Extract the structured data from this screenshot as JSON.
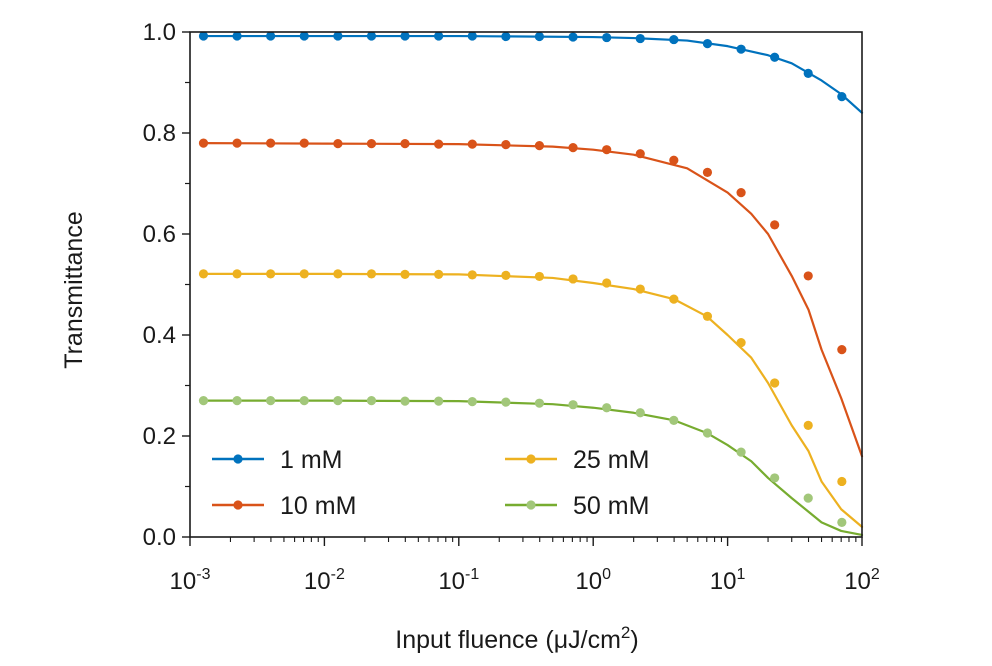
{
  "chart_data": {
    "type": "line",
    "xscale": "log",
    "xlabel": "Input fluence (μJ/cm",
    "xlabel_sup": "2",
    "xlabel_close": ")",
    "ylabel": "Transmittance",
    "xlim": [
      0.001,
      100
    ],
    "ylim": [
      0.0,
      1.0
    ],
    "yticks": [
      {
        "value": 0.0,
        "label": "0.0"
      },
      {
        "value": 0.2,
        "label": "0.2"
      },
      {
        "value": 0.4,
        "label": "0.4"
      },
      {
        "value": 0.6,
        "label": "0.6"
      },
      {
        "value": 0.8,
        "label": "0.8"
      },
      {
        "value": 1.0,
        "label": "1.0"
      }
    ],
    "xticks": [
      {
        "value": 0.001,
        "base": "10",
        "exp": "-3"
      },
      {
        "value": 0.01,
        "base": "10",
        "exp": "-2"
      },
      {
        "value": 0.1,
        "base": "10",
        "exp": "-1"
      },
      {
        "value": 1,
        "base": "10",
        "exp": "0"
      },
      {
        "value": 10,
        "base": "10",
        "exp": "1"
      },
      {
        "value": 100,
        "base": "10",
        "exp": "2"
      }
    ],
    "legend_placement": "bottom-left, two columns",
    "x": [
      0.00126,
      0.00224,
      0.00398,
      0.00708,
      0.0126,
      0.0224,
      0.0398,
      0.0708,
      0.126,
      0.224,
      0.398,
      0.708,
      1.26,
      2.24,
      3.98,
      7.08,
      12.6,
      22.4,
      39.8,
      70.8
    ],
    "series": [
      {
        "name": "1 mM",
        "color": "#0072BD",
        "marker_color": "#0072BD",
        "markers": [
          0.992,
          0.992,
          0.992,
          0.992,
          0.992,
          0.992,
          0.992,
          0.992,
          0.992,
          0.991,
          0.991,
          0.99,
          0.989,
          0.987,
          0.985,
          0.977,
          0.966,
          0.95,
          0.918,
          0.872
        ],
        "marker_x": [
          0.00126,
          0.00224,
          0.00398,
          0.00708,
          0.0126,
          0.0224,
          0.0398,
          0.0708,
          0.126,
          0.224,
          0.398,
          0.708,
          1.26,
          2.24,
          3.98,
          7.08,
          12.6,
          22.4,
          39.8,
          70.8
        ],
        "curve_x": [
          0.00126,
          0.01,
          0.1,
          1,
          2,
          5,
          10,
          20,
          30,
          50,
          70,
          100
        ],
        "curve_y": [
          0.992,
          0.992,
          0.992,
          0.99,
          0.988,
          0.983,
          0.972,
          0.954,
          0.938,
          0.904,
          0.877,
          0.84
        ]
      },
      {
        "name": "10 mM",
        "color": "#D95319",
        "marker_color": "#D95319",
        "markers": [
          0.78,
          0.78,
          0.78,
          0.78,
          0.779,
          0.779,
          0.779,
          0.778,
          0.778,
          0.777,
          0.775,
          0.771,
          0.767,
          0.759,
          0.746,
          0.722,
          0.682,
          0.618,
          0.517,
          0.371
        ],
        "marker_x": [
          0.00126,
          0.00224,
          0.00398,
          0.00708,
          0.0126,
          0.0224,
          0.0398,
          0.0708,
          0.126,
          0.224,
          0.398,
          0.708,
          1.26,
          2.24,
          3.98,
          7.08,
          12.6,
          22.4,
          39.8,
          70.8
        ],
        "curve_x": [
          0.00126,
          0.01,
          0.1,
          0.5,
          1,
          2,
          5,
          10,
          15,
          20,
          30,
          40,
          50,
          70,
          100
        ],
        "curve_y": [
          0.78,
          0.779,
          0.778,
          0.773,
          0.767,
          0.757,
          0.73,
          0.682,
          0.64,
          0.6,
          0.517,
          0.45,
          0.371,
          0.275,
          0.16
        ]
      },
      {
        "name": "25 mM",
        "color": "#EDB120",
        "marker_color": "#EDB120",
        "markers": [
          0.521,
          0.521,
          0.521,
          0.521,
          0.521,
          0.521,
          0.52,
          0.52,
          0.519,
          0.518,
          0.516,
          0.511,
          0.503,
          0.491,
          0.471,
          0.437,
          0.385,
          0.305,
          0.221,
          0.11
        ],
        "marker_x": [
          0.00126,
          0.00224,
          0.00398,
          0.00708,
          0.0126,
          0.0224,
          0.0398,
          0.0708,
          0.126,
          0.224,
          0.398,
          0.708,
          1.26,
          2.24,
          3.98,
          7.08,
          12.6,
          22.4,
          39.8,
          70.8
        ],
        "curve_x": [
          0.00126,
          0.01,
          0.1,
          0.5,
          1,
          2,
          4,
          7,
          10,
          15,
          20,
          30,
          40,
          50,
          70,
          100
        ],
        "curve_y": [
          0.521,
          0.521,
          0.52,
          0.513,
          0.503,
          0.491,
          0.471,
          0.437,
          0.4,
          0.355,
          0.305,
          0.221,
          0.17,
          0.11,
          0.055,
          0.02
        ]
      },
      {
        "name": "50 mM",
        "color": "#77AC30",
        "marker_color": "#A2C77A",
        "markers": [
          0.27,
          0.27,
          0.27,
          0.27,
          0.27,
          0.27,
          0.269,
          0.269,
          0.268,
          0.267,
          0.265,
          0.262,
          0.256,
          0.246,
          0.231,
          0.206,
          0.168,
          0.117,
          0.077,
          0.029
        ],
        "marker_x": [
          0.00126,
          0.00224,
          0.00398,
          0.00708,
          0.0126,
          0.0224,
          0.0398,
          0.0708,
          0.126,
          0.224,
          0.398,
          0.708,
          1.26,
          2.24,
          3.98,
          7.08,
          12.6,
          22.4,
          39.8,
          70.8
        ],
        "curve_x": [
          0.00126,
          0.01,
          0.1,
          0.5,
          1,
          2,
          4,
          7,
          10,
          15,
          20,
          30,
          40,
          50,
          70,
          100
        ],
        "curve_y": [
          0.27,
          0.27,
          0.269,
          0.263,
          0.256,
          0.246,
          0.231,
          0.206,
          0.182,
          0.15,
          0.117,
          0.077,
          0.05,
          0.029,
          0.012,
          0.004
        ]
      }
    ]
  }
}
